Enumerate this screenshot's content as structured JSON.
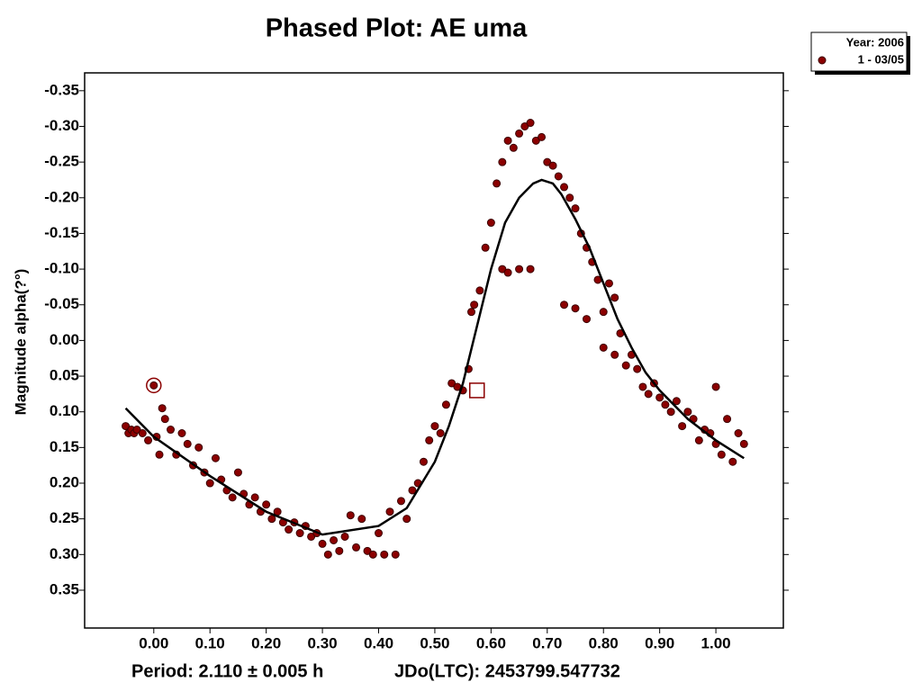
{
  "chart_data": {
    "type": "scatter",
    "title": "Phased Plot: AE uma",
    "y_label": "Magnitude alpha(?°)",
    "footer": [
      "Period: 2.110 ± 0.005 h",
      "JDo(LTC): 2453799.547732"
    ],
    "legend_title": "Year: 2006",
    "legend": "top-right-outside",
    "y_inverted": true,
    "xlim": [
      -0.123,
      1.12
    ],
    "ylim": [
      -0.375,
      0.403
    ],
    "xticks": [
      {
        "value": 0,
        "label": "0.00"
      },
      {
        "value": 0.1,
        "label": "0.10"
      },
      {
        "value": 0.2,
        "label": "0.20"
      },
      {
        "value": 0.3,
        "label": "0.30"
      },
      {
        "value": 0.4,
        "label": "0.40"
      },
      {
        "value": 0.5,
        "label": "0.50"
      },
      {
        "value": 0.6,
        "label": "0.60"
      },
      {
        "value": 0.7,
        "label": "0.70"
      },
      {
        "value": 0.8,
        "label": "0.80"
      },
      {
        "value": 0.9,
        "label": "0.90"
      },
      {
        "value": 1,
        "label": "1.00"
      }
    ],
    "yticks": [
      {
        "value": -0.35,
        "label": "-0.35"
      },
      {
        "value": -0.3,
        "label": "-0.30"
      },
      {
        "value": -0.25,
        "label": "-0.25"
      },
      {
        "value": -0.2,
        "label": "-0.20"
      },
      {
        "value": -0.15,
        "label": "-0.15"
      },
      {
        "value": -0.1,
        "label": "-0.10"
      },
      {
        "value": -0.05,
        "label": "-0.05"
      },
      {
        "value": 0,
        "label": "0.00"
      },
      {
        "value": 0.05,
        "label": "0.05"
      },
      {
        "value": 0.1,
        "label": "0.10"
      },
      {
        "value": 0.15,
        "label": "0.15"
      },
      {
        "value": 0.2,
        "label": "0.20"
      },
      {
        "value": 0.25,
        "label": "0.25"
      },
      {
        "value": 0.3,
        "label": "0.30"
      },
      {
        "value": 0.35,
        "label": "0.35"
      }
    ],
    "series": [
      {
        "name": "1 - 03/05",
        "color": "#8b0000",
        "x": [
          -0.05,
          -0.045,
          -0.04,
          -0.035,
          -0.03,
          -0.02,
          -0.01,
          0.0,
          0.005,
          0.01,
          0.015,
          0.02,
          0.03,
          0.04,
          0.05,
          0.06,
          0.07,
          0.08,
          0.09,
          0.1,
          0.11,
          0.12,
          0.13,
          0.14,
          0.15,
          0.16,
          0.17,
          0.18,
          0.19,
          0.2,
          0.21,
          0.22,
          0.23,
          0.24,
          0.25,
          0.26,
          0.27,
          0.28,
          0.29,
          0.3,
          0.31,
          0.32,
          0.33,
          0.34,
          0.35,
          0.36,
          0.37,
          0.38,
          0.39,
          0.4,
          0.41,
          0.42,
          0.43,
          0.44,
          0.45,
          0.46,
          0.47,
          0.48,
          0.49,
          0.5,
          0.51,
          0.52,
          0.53,
          0.54,
          0.55,
          0.56,
          0.565,
          0.57,
          0.58,
          0.59,
          0.6,
          0.61,
          0.62,
          0.63,
          0.64,
          0.65,
          0.66,
          0.67,
          0.68,
          0.69,
          0.7,
          0.71,
          0.72,
          0.62,
          0.63,
          0.65,
          0.67,
          0.73,
          0.74,
          0.75,
          0.76,
          0.77,
          0.73,
          0.75,
          0.77,
          0.78,
          0.79,
          0.8,
          0.81,
          0.82,
          0.8,
          0.82,
          0.83,
          0.84,
          0.85,
          0.86,
          0.87,
          0.88,
          0.89,
          0.9,
          0.91,
          0.92,
          0.93,
          0.94,
          0.95,
          0.96,
          0.97,
          0.98,
          0.99,
          1.0,
          1.0,
          1.01,
          1.02,
          1.03,
          1.04,
          1.05
        ],
        "values": [
          0.12,
          0.13,
          0.125,
          0.13,
          0.125,
          0.13,
          0.14,
          0.063,
          0.135,
          0.16,
          0.095,
          0.11,
          0.125,
          0.16,
          0.13,
          0.145,
          0.175,
          0.15,
          0.185,
          0.2,
          0.165,
          0.195,
          0.21,
          0.22,
          0.185,
          0.215,
          0.23,
          0.22,
          0.24,
          0.23,
          0.25,
          0.24,
          0.255,
          0.265,
          0.255,
          0.27,
          0.26,
          0.275,
          0.27,
          0.285,
          0.3,
          0.28,
          0.295,
          0.275,
          0.245,
          0.29,
          0.25,
          0.295,
          0.3,
          0.27,
          0.3,
          0.24,
          0.3,
          0.225,
          0.25,
          0.21,
          0.2,
          0.17,
          0.14,
          0.12,
          0.13,
          0.09,
          0.06,
          0.065,
          0.07,
          0.04,
          -0.04,
          -0.05,
          -0.07,
          -0.13,
          -0.165,
          -0.22,
          -0.25,
          -0.28,
          -0.27,
          -0.29,
          -0.3,
          -0.305,
          -0.28,
          -0.285,
          -0.25,
          -0.245,
          -0.23,
          -0.1,
          -0.095,
          -0.1,
          -0.1,
          -0.215,
          -0.2,
          -0.185,
          -0.15,
          -0.13,
          -0.05,
          -0.045,
          -0.03,
          -0.11,
          -0.085,
          -0.04,
          -0.08,
          -0.06,
          0.01,
          0.02,
          -0.01,
          0.035,
          0.02,
          0.04,
          0.065,
          0.075,
          0.06,
          0.08,
          0.09,
          0.1,
          0.085,
          0.12,
          0.1,
          0.11,
          0.14,
          0.125,
          0.13,
          0.065,
          0.145,
          0.16,
          0.11,
          0.17,
          0.13,
          0.145
        ]
      }
    ],
    "fit": {
      "color": "#000000",
      "x": [
        -0.05,
        0.0,
        0.1,
        0.2,
        0.3,
        0.4,
        0.45,
        0.5,
        0.525,
        0.55,
        0.575,
        0.6,
        0.625,
        0.65,
        0.675,
        0.69,
        0.71,
        0.725,
        0.75,
        0.775,
        0.8,
        0.825,
        0.85,
        0.875,
        0.9,
        0.95,
        1.0,
        1.05
      ],
      "values": [
        0.095,
        0.135,
        0.19,
        0.24,
        0.272,
        0.26,
        0.235,
        0.17,
        0.12,
        0.06,
        -0.02,
        -0.1,
        -0.165,
        -0.2,
        -0.22,
        -0.225,
        -0.22,
        -0.205,
        -0.17,
        -0.13,
        -0.08,
        -0.03,
        0.01,
        0.045,
        0.07,
        0.11,
        0.14,
        0.165
      ]
    },
    "highlight_points": [
      {
        "x": 0.0,
        "y": 0.063,
        "shape": "circle"
      },
      {
        "x": 0.575,
        "y": 0.07,
        "shape": "square"
      }
    ]
  }
}
